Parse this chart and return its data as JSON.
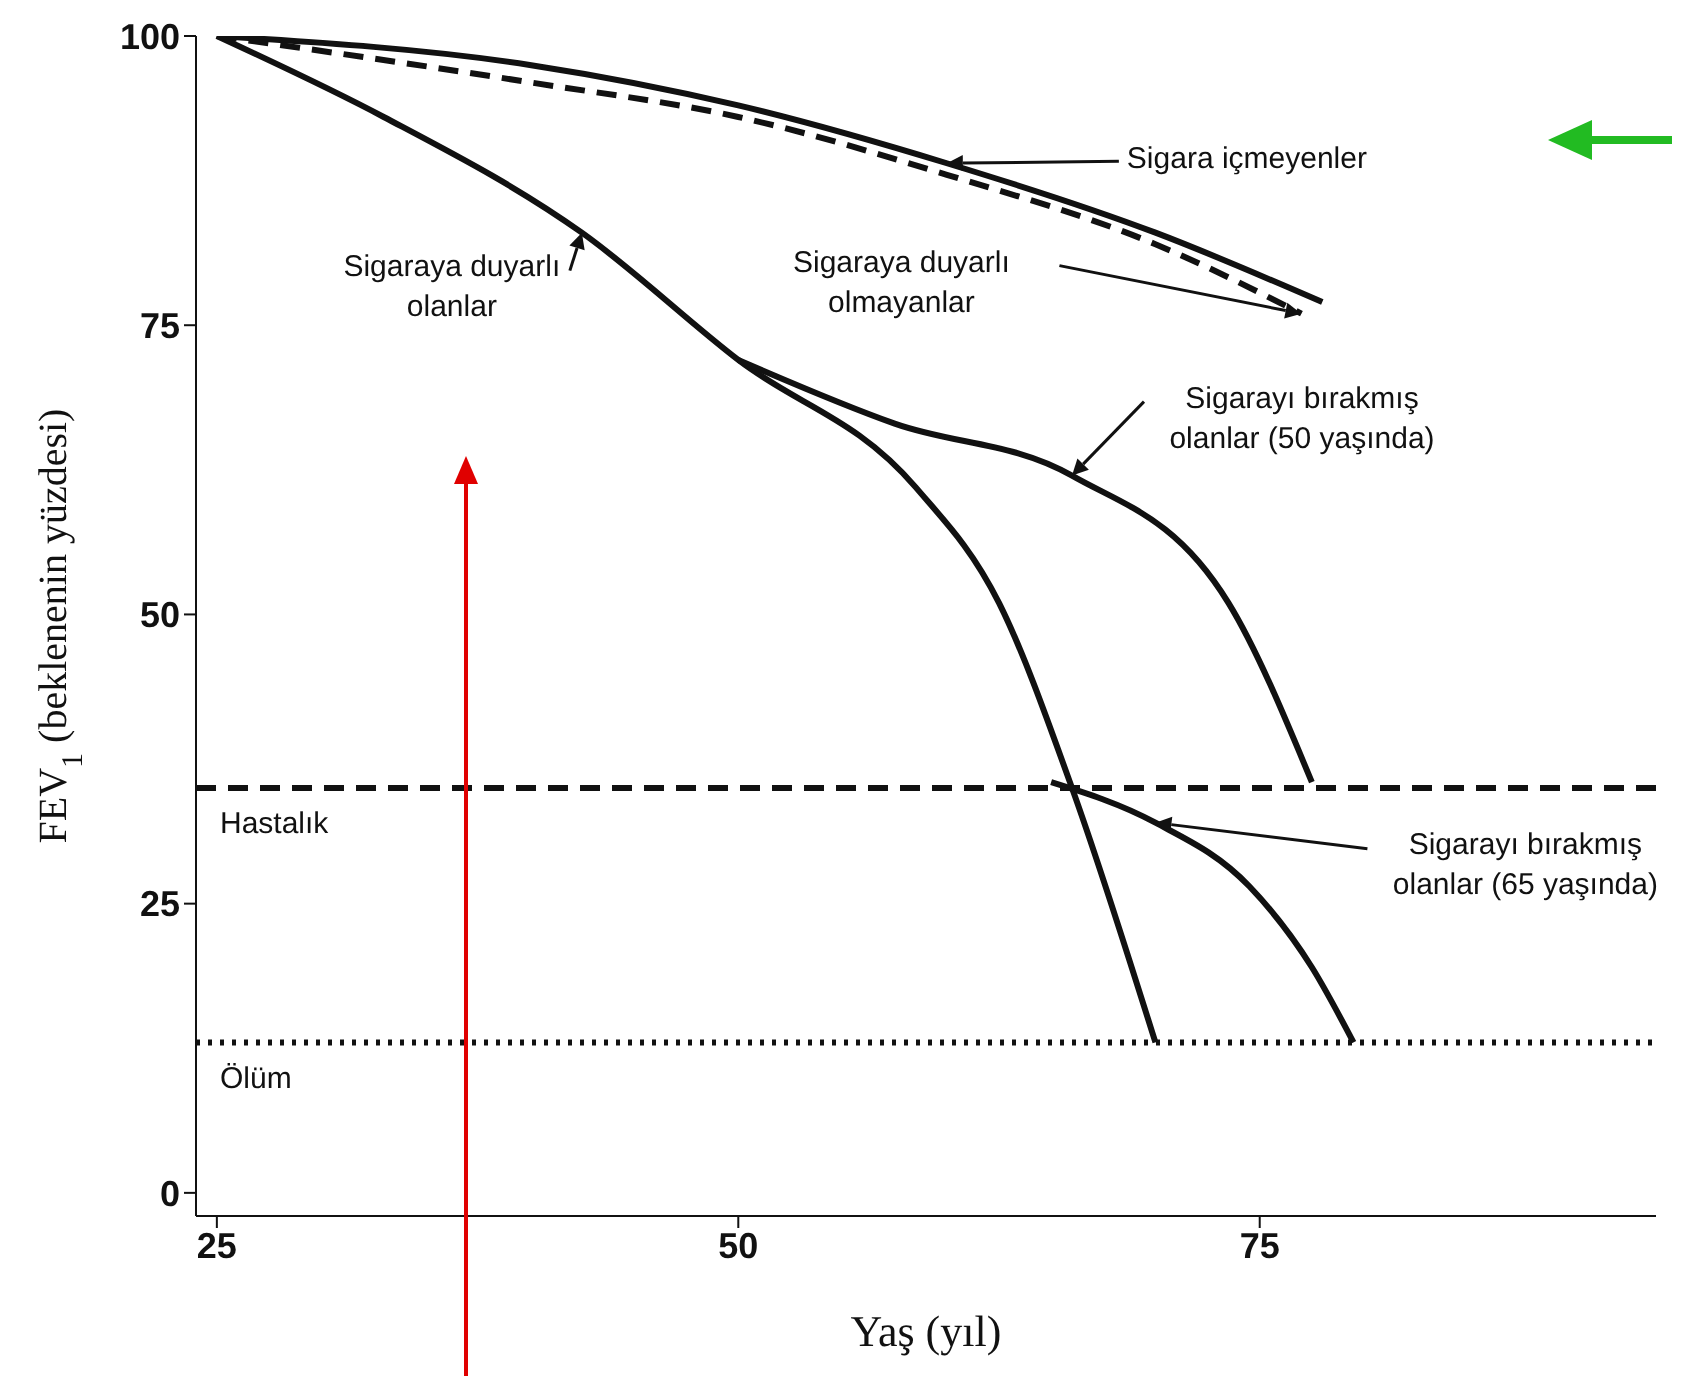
{
  "chart_data": {
    "type": "line",
    "xlabel": "Yaş (yıl)",
    "ylabel": "FEV$_{1}$ (beklenenin yüzdesi)",
    "xlim": [
      24,
      94
    ],
    "xticks": [
      25,
      50,
      75
    ],
    "ylim": [
      -2,
      100
    ],
    "yticks": [
      0,
      25,
      50,
      75,
      100
    ],
    "marker": "none",
    "series": [
      {
        "name": "Sigara içmeyenler",
        "color": "#111111",
        "line_style": "solid",
        "x": [
          25,
          40,
          50,
          60,
          70,
          78
        ],
        "values": [
          100,
          97.5,
          94,
          89,
          83,
          77
        ]
      },
      {
        "name": "Sigaraya duyarlı olmayanlar",
        "color": "#111111",
        "line_style": "dashed",
        "x": [
          25,
          40,
          50,
          60,
          70,
          77
        ],
        "values": [
          100,
          96,
          93,
          88,
          82,
          76
        ]
      },
      {
        "name": "Sigaraya duyarlı olanlar",
        "color": "#111111",
        "line_style": "solid",
        "x": [
          25,
          33,
          42.5,
          50,
          58.5,
          62.5,
          66,
          70
        ],
        "values": [
          100,
          93,
          83,
          72,
          61,
          51,
          35,
          13
        ]
      },
      {
        "name": "Sigarayı bırakmış olanlar (50 yaşında)",
        "color": "#111111",
        "line_style": "solid",
        "x": [
          50,
          57.5,
          66,
          73.5,
          77.5
        ],
        "values": [
          72,
          66.5,
          62,
          51,
          35.5
        ]
      },
      {
        "name": "Sigarayı bırakmış olanlar (65 yaşında)",
        "color": "#111111",
        "line_style": "solid",
        "x": [
          65,
          70,
          74.5,
          77.5,
          79.5
        ],
        "values": [
          35.5,
          32,
          26.5,
          19.5,
          13
        ]
      }
    ],
    "ref_lines": [
      {
        "axis": "y",
        "value": 35,
        "label": "Hastalık",
        "line_style": "dashed",
        "color": "#111111"
      },
      {
        "axis": "y",
        "value": 13,
        "label": "Ölüm",
        "line_style": "dotted",
        "color": "#111111"
      }
    ]
  }
}
